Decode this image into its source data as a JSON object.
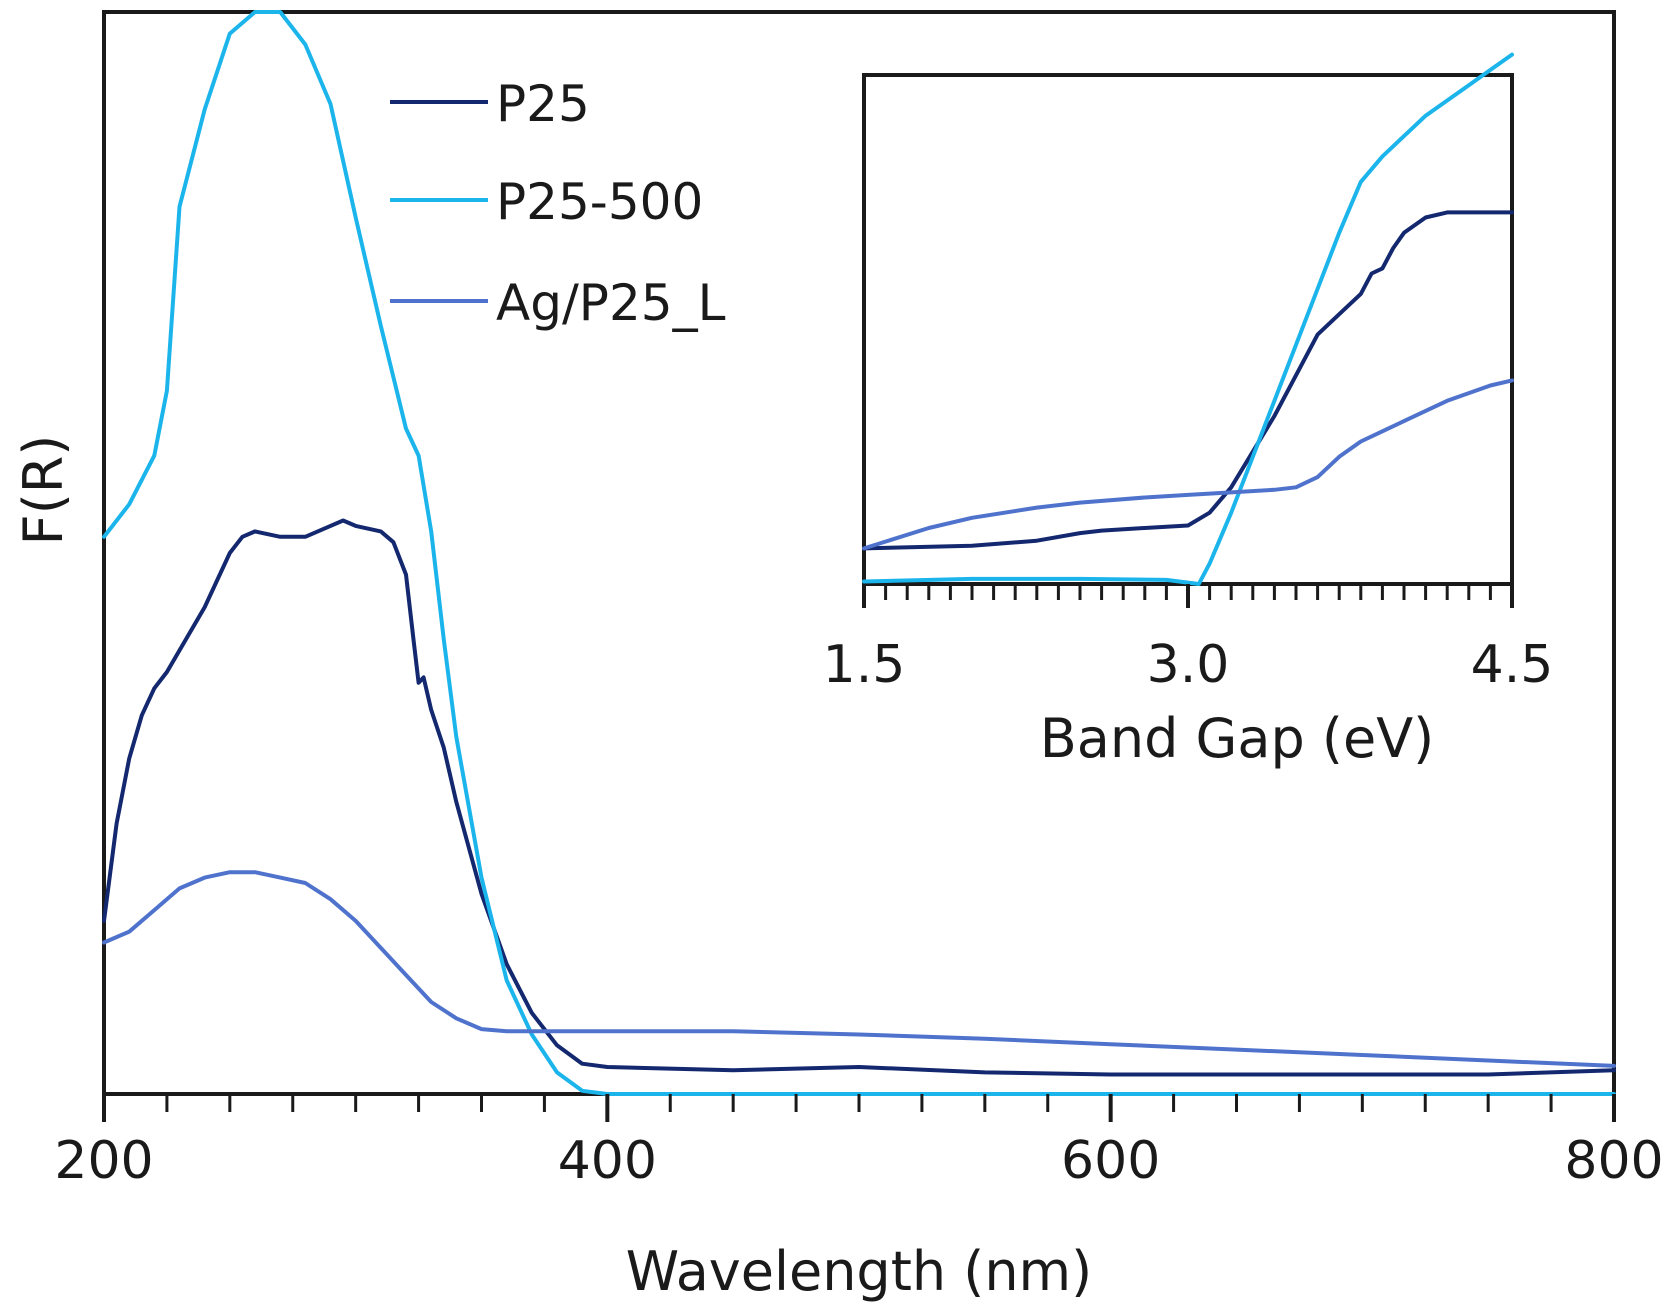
{
  "chart_data": [
    {
      "type": "line",
      "xlabel": "Wavelength (nm)",
      "ylabel": "F(R)",
      "xlim": [
        200,
        800
      ],
      "ylim": [
        0,
        100
      ],
      "x_ticks": [
        200,
        400,
        600,
        800
      ],
      "x_minor_step": 25,
      "y_ticks_shown": false,
      "grid": false,
      "legend": {
        "placement": "top-left"
      },
      "series": [
        {
          "name": "P25",
          "color": "#13286e",
          "x": [
            200,
            205,
            210,
            215,
            220,
            225,
            230,
            240,
            250,
            255,
            260,
            270,
            280,
            290,
            295,
            300,
            310,
            315,
            320,
            323,
            325,
            327,
            330,
            335,
            340,
            350,
            360,
            370,
            380,
            390,
            400,
            450,
            500,
            550,
            600,
            650,
            700,
            750,
            800
          ],
          "y": [
            16,
            25,
            31,
            35,
            37.5,
            39,
            41,
            45,
            50,
            51.5,
            52,
            51.5,
            51.5,
            52.5,
            53,
            52.5,
            52,
            51,
            48,
            42,
            38,
            38.5,
            35.5,
            32,
            27,
            18.5,
            12,
            7.5,
            4.5,
            2.8,
            2.5,
            2.2,
            2.5,
            2,
            1.8,
            1.8,
            1.8,
            1.8,
            2.2
          ]
        },
        {
          "name": "P25-500",
          "color": "#1bb5ec",
          "x": [
            200,
            210,
            220,
            225,
            230,
            240,
            250,
            260,
            270,
            280,
            290,
            300,
            310,
            320,
            325,
            330,
            335,
            340,
            350,
            360,
            370,
            380,
            390,
            400,
            450,
            500,
            550,
            600,
            650,
            700,
            750,
            800
          ],
          "y": [
            51.5,
            54.5,
            59,
            65,
            82,
            91,
            98,
            100,
            100,
            97,
            91.5,
            81,
            71,
            61.5,
            59,
            52,
            42,
            33,
            20,
            10.5,
            5.5,
            2,
            0.3,
            0,
            0,
            0,
            0,
            0,
            0,
            0,
            0,
            0
          ]
        },
        {
          "name": "Ag/P25_L",
          "color": "#4f73cc",
          "x": [
            200,
            210,
            220,
            230,
            240,
            250,
            260,
            270,
            280,
            290,
            300,
            310,
            320,
            330,
            340,
            350,
            360,
            370,
            380,
            400,
            450,
            500,
            550,
            600,
            650,
            700,
            750,
            800
          ],
          "y": [
            14,
            15,
            17,
            19,
            20,
            20.5,
            20.5,
            20,
            19.5,
            18,
            16,
            13.5,
            11,
            8.5,
            7,
            6,
            5.8,
            5.8,
            5.8,
            5.8,
            5.8,
            5.5,
            5.1,
            4.6,
            4.1,
            3.6,
            3.1,
            2.6
          ]
        }
      ]
    },
    {
      "type": "line",
      "xlabel": "Band Gap (eV)",
      "ylabel": "",
      "xlim": [
        1.5,
        4.5
      ],
      "ylim": [
        0,
        100
      ],
      "x_ticks": [
        "1.5",
        "3.0",
        "4.5"
      ],
      "x_minor_step": 0.1,
      "y_ticks_shown": false,
      "grid": false,
      "placement": "inset top-right",
      "series": [
        {
          "name": "P25",
          "color": "#13286e",
          "x": [
            1.5,
            2.0,
            2.3,
            2.5,
            2.6,
            2.8,
            3.0,
            3.1,
            3.2,
            3.3,
            3.4,
            3.5,
            3.6,
            3.7,
            3.8,
            3.85,
            3.9,
            3.95,
            4.0,
            4.1,
            4.2,
            4.5
          ],
          "y": [
            7,
            7.5,
            8.5,
            10,
            10.5,
            11,
            11.5,
            14,
            19,
            26,
            33,
            41,
            49,
            53,
            57,
            61,
            62,
            66,
            69,
            72,
            73,
            73
          ]
        },
        {
          "name": "P25-500",
          "color": "#1bb5ec",
          "x": [
            1.5,
            2.0,
            2.5,
            2.9,
            3.05,
            3.1,
            3.2,
            3.3,
            3.4,
            3.5,
            3.6,
            3.7,
            3.8,
            3.9,
            4.0,
            4.1,
            4.2,
            4.3,
            4.4,
            4.5
          ],
          "y": [
            0.5,
            1,
            1,
            0.8,
            0,
            4,
            14,
            25,
            36,
            47,
            58,
            69,
            79,
            84,
            88,
            92,
            95,
            98,
            101,
            104
          ]
        },
        {
          "name": "Ag/P25_L",
          "color": "#4f73cc",
          "x": [
            1.5,
            1.8,
            2.0,
            2.3,
            2.5,
            2.8,
            3.0,
            3.2,
            3.4,
            3.5,
            3.6,
            3.7,
            3.8,
            3.9,
            4.0,
            4.2,
            4.4,
            4.5
          ],
          "y": [
            7,
            11,
            13,
            15,
            16,
            17,
            17.5,
            18,
            18.5,
            19,
            21,
            25,
            28,
            30,
            32,
            36,
            39,
            40
          ]
        }
      ]
    }
  ]
}
